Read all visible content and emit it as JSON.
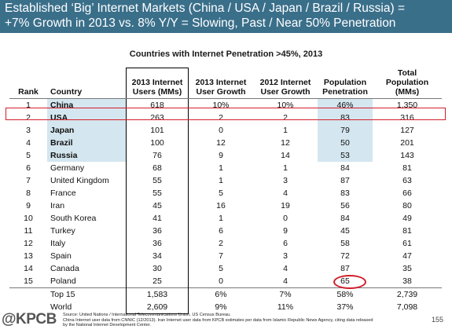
{
  "banner": {
    "line1": "Established ‘Big’ Internet Markets (China / USA / Japan / Brazil / Russia) =",
    "line2": "+7% Growth in 2013 vs. 8% Y/Y = Slowing, Past / Near 50% Penetration"
  },
  "subtitle": "Countries with Internet Penetration >45%, 2013",
  "headers": {
    "rank": "Rank",
    "country": "Country",
    "users_l1": "2013 Internet",
    "users_l2": "Users (MMs)",
    "g13_l1": "2013 Internet",
    "g13_l2": "User Growth",
    "g12_l1": "2012 Internet",
    "g12_l2": "User Growth",
    "pen_l1": "Population",
    "pen_l2": "Penetration",
    "tot_l1": "Total",
    "tot_l2": "Population (MMs)"
  },
  "rows": [
    {
      "rank": "1",
      "country": "China",
      "users": "618",
      "g13": "10%",
      "g12": "10%",
      "pen": "46%",
      "tot": "1,350"
    },
    {
      "rank": "2",
      "country": "USA",
      "users": "263",
      "g13": "2",
      "g12": "2",
      "pen": "83",
      "tot": "316"
    },
    {
      "rank": "3",
      "country": "Japan",
      "users": "101",
      "g13": "0",
      "g12": "1",
      "pen": "79",
      "tot": "127"
    },
    {
      "rank": "4",
      "country": "Brazil",
      "users": "100",
      "g13": "12",
      "g12": "12",
      "pen": "50",
      "tot": "201"
    },
    {
      "rank": "5",
      "country": "Russia",
      "users": "76",
      "g13": "9",
      "g12": "14",
      "pen": "53",
      "tot": "143"
    },
    {
      "rank": "6",
      "country": "Germany",
      "users": "68",
      "g13": "1",
      "g12": "1",
      "pen": "84",
      "tot": "81"
    },
    {
      "rank": "7",
      "country": "United Kingdom",
      "users": "55",
      "g13": "1",
      "g12": "3",
      "pen": "87",
      "tot": "63"
    },
    {
      "rank": "8",
      "country": "France",
      "users": "55",
      "g13": "5",
      "g12": "4",
      "pen": "83",
      "tot": "66"
    },
    {
      "rank": "9",
      "country": "Iran",
      "users": "45",
      "g13": "16",
      "g12": "19",
      "pen": "56",
      "tot": "80"
    },
    {
      "rank": "10",
      "country": "South Korea",
      "users": "41",
      "g13": "1",
      "g12": "0",
      "pen": "84",
      "tot": "49"
    },
    {
      "rank": "11",
      "country": "Turkey",
      "users": "36",
      "g13": "6",
      "g12": "9",
      "pen": "45",
      "tot": "81"
    },
    {
      "rank": "12",
      "country": "Italy",
      "users": "36",
      "g13": "2",
      "g12": "6",
      "pen": "58",
      "tot": "61"
    },
    {
      "rank": "13",
      "country": "Spain",
      "users": "34",
      "g13": "7",
      "g12": "3",
      "pen": "72",
      "tot": "47"
    },
    {
      "rank": "14",
      "country": "Canada",
      "users": "30",
      "g13": "5",
      "g12": "4",
      "pen": "87",
      "tot": "35"
    },
    {
      "rank": "15",
      "country": "Poland",
      "users": "25",
      "g13": "0",
      "g12": "4",
      "pen": "65",
      "tot": "38"
    }
  ],
  "totals": [
    {
      "rank": "",
      "country": "Top 15",
      "users": "1,583",
      "g13": "6%",
      "g12": "7%",
      "pen": "58%",
      "tot": "2,739"
    },
    {
      "rank": "",
      "country": "World",
      "users": "2,609",
      "g13": "9%",
      "g12": "11%",
      "pen": "37%",
      "tot": "7,098"
    }
  ],
  "highlight_color": "#d21e2b",
  "shade_color": "#d4e6ef",
  "banner_color": "#3a6f8a",
  "logo": "@KPCB",
  "source": {
    "line1": "Source: United Nations / International Telecommunications Union, US Census Bureau.",
    "line2": "China Internet user data from CNNIC (12/2013). Iran Internet user data from KPCB estimates per data from Islamic Republic News Agency, citing data released",
    "line3": "by the National Internet Development Center."
  },
  "page_number": "155"
}
